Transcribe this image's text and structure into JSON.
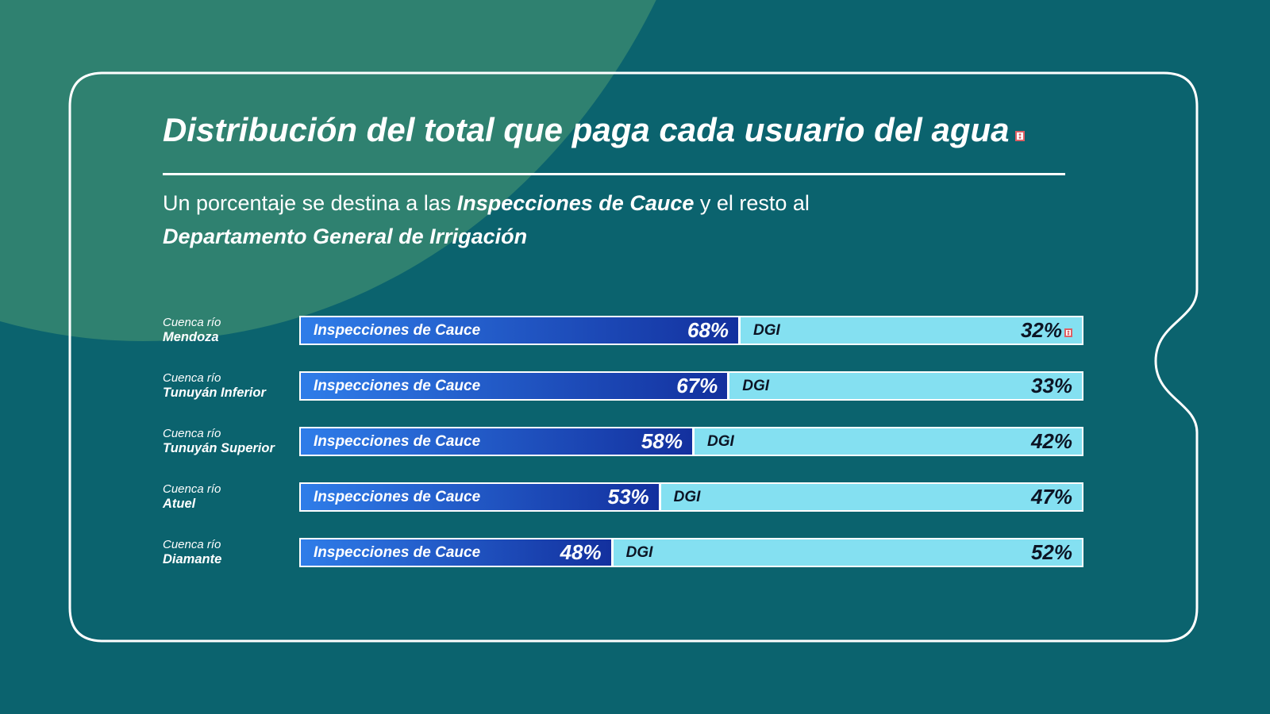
{
  "colors": {
    "background_teal": "#0b636e",
    "background_green_blob": "#2f8170",
    "card_border": "#ffffff",
    "inspecciones_gradient_start": "#2f7de9",
    "inspecciones_gradient_end": "#13309e",
    "dgi_fill": "#84e0f1",
    "dgi_text": "#0c1424",
    "title_text": "#ffffff",
    "missing_glyph_red": "#dd5f64"
  },
  "title": {
    "text": "Distribución del total que paga cada usuario del agua",
    "has_trailing_missing_glyph": true
  },
  "subtitle": {
    "part1": "Un porcentaje se destina a las ",
    "emphasis1": "Inspecciones de Cauce",
    "part2": " y el resto al",
    "emphasis2": "Departamento General de Irrigación"
  },
  "chart_data": {
    "type": "bar",
    "orientation": "horizontal",
    "stacked": true,
    "value_unit": "%",
    "category_prefix": "Cuenca río",
    "categories": [
      "Mendoza",
      "Tunuyán Inferior",
      "Tunuyán Superior",
      "Atuel",
      "Diamante"
    ],
    "series": [
      {
        "name": "Inspecciones de Cauce",
        "values": [
          68,
          67,
          58,
          53,
          48
        ]
      },
      {
        "name": "DGI",
        "values": [
          32,
          33,
          42,
          47,
          52
        ]
      }
    ],
    "rendered_ic_width_pct": [
      56.0,
      54.6,
      50.1,
      45.8,
      39.7
    ],
    "missing_glyph_after_dgi_value_row": 0,
    "legend_position": "inside-bars",
    "grid": false
  }
}
